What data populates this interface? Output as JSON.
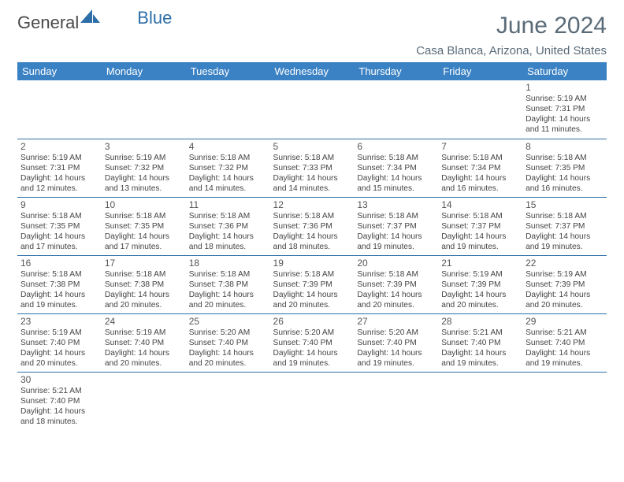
{
  "brand": {
    "part1": "General",
    "part2": "Blue"
  },
  "title": "June 2024",
  "location": "Casa Blanca, Arizona, United States",
  "colors": {
    "header_bg": "#3b82c4",
    "header_text": "#ffffff",
    "accent": "#2e6ea8",
    "title_text": "#5a6b78"
  },
  "day_names": [
    "Sunday",
    "Monday",
    "Tuesday",
    "Wednesday",
    "Thursday",
    "Friday",
    "Saturday"
  ],
  "weeks": [
    [
      null,
      null,
      null,
      null,
      null,
      null,
      {
        "d": "1",
        "sr": "5:19 AM",
        "ss": "7:31 PM",
        "dl": "14 hours and 11 minutes."
      }
    ],
    [
      {
        "d": "2",
        "sr": "5:19 AM",
        "ss": "7:31 PM",
        "dl": "14 hours and 12 minutes."
      },
      {
        "d": "3",
        "sr": "5:19 AM",
        "ss": "7:32 PM",
        "dl": "14 hours and 13 minutes."
      },
      {
        "d": "4",
        "sr": "5:18 AM",
        "ss": "7:32 PM",
        "dl": "14 hours and 14 minutes."
      },
      {
        "d": "5",
        "sr": "5:18 AM",
        "ss": "7:33 PM",
        "dl": "14 hours and 14 minutes."
      },
      {
        "d": "6",
        "sr": "5:18 AM",
        "ss": "7:34 PM",
        "dl": "14 hours and 15 minutes."
      },
      {
        "d": "7",
        "sr": "5:18 AM",
        "ss": "7:34 PM",
        "dl": "14 hours and 16 minutes."
      },
      {
        "d": "8",
        "sr": "5:18 AM",
        "ss": "7:35 PM",
        "dl": "14 hours and 16 minutes."
      }
    ],
    [
      {
        "d": "9",
        "sr": "5:18 AM",
        "ss": "7:35 PM",
        "dl": "14 hours and 17 minutes."
      },
      {
        "d": "10",
        "sr": "5:18 AM",
        "ss": "7:35 PM",
        "dl": "14 hours and 17 minutes."
      },
      {
        "d": "11",
        "sr": "5:18 AM",
        "ss": "7:36 PM",
        "dl": "14 hours and 18 minutes."
      },
      {
        "d": "12",
        "sr": "5:18 AM",
        "ss": "7:36 PM",
        "dl": "14 hours and 18 minutes."
      },
      {
        "d": "13",
        "sr": "5:18 AM",
        "ss": "7:37 PM",
        "dl": "14 hours and 19 minutes."
      },
      {
        "d": "14",
        "sr": "5:18 AM",
        "ss": "7:37 PM",
        "dl": "14 hours and 19 minutes."
      },
      {
        "d": "15",
        "sr": "5:18 AM",
        "ss": "7:37 PM",
        "dl": "14 hours and 19 minutes."
      }
    ],
    [
      {
        "d": "16",
        "sr": "5:18 AM",
        "ss": "7:38 PM",
        "dl": "14 hours and 19 minutes."
      },
      {
        "d": "17",
        "sr": "5:18 AM",
        "ss": "7:38 PM",
        "dl": "14 hours and 20 minutes."
      },
      {
        "d": "18",
        "sr": "5:18 AM",
        "ss": "7:38 PM",
        "dl": "14 hours and 20 minutes."
      },
      {
        "d": "19",
        "sr": "5:18 AM",
        "ss": "7:39 PM",
        "dl": "14 hours and 20 minutes."
      },
      {
        "d": "20",
        "sr": "5:18 AM",
        "ss": "7:39 PM",
        "dl": "14 hours and 20 minutes."
      },
      {
        "d": "21",
        "sr": "5:19 AM",
        "ss": "7:39 PM",
        "dl": "14 hours and 20 minutes."
      },
      {
        "d": "22",
        "sr": "5:19 AM",
        "ss": "7:39 PM",
        "dl": "14 hours and 20 minutes."
      }
    ],
    [
      {
        "d": "23",
        "sr": "5:19 AM",
        "ss": "7:40 PM",
        "dl": "14 hours and 20 minutes."
      },
      {
        "d": "24",
        "sr": "5:19 AM",
        "ss": "7:40 PM",
        "dl": "14 hours and 20 minutes."
      },
      {
        "d": "25",
        "sr": "5:20 AM",
        "ss": "7:40 PM",
        "dl": "14 hours and 20 minutes."
      },
      {
        "d": "26",
        "sr": "5:20 AM",
        "ss": "7:40 PM",
        "dl": "14 hours and 19 minutes."
      },
      {
        "d": "27",
        "sr": "5:20 AM",
        "ss": "7:40 PM",
        "dl": "14 hours and 19 minutes."
      },
      {
        "d": "28",
        "sr": "5:21 AM",
        "ss": "7:40 PM",
        "dl": "14 hours and 19 minutes."
      },
      {
        "d": "29",
        "sr": "5:21 AM",
        "ss": "7:40 PM",
        "dl": "14 hours and 19 minutes."
      }
    ],
    [
      {
        "d": "30",
        "sr": "5:21 AM",
        "ss": "7:40 PM",
        "dl": "14 hours and 18 minutes."
      },
      null,
      null,
      null,
      null,
      null,
      null
    ]
  ],
  "labels": {
    "sunrise": "Sunrise:",
    "sunset": "Sunset:",
    "daylight": "Daylight:"
  }
}
